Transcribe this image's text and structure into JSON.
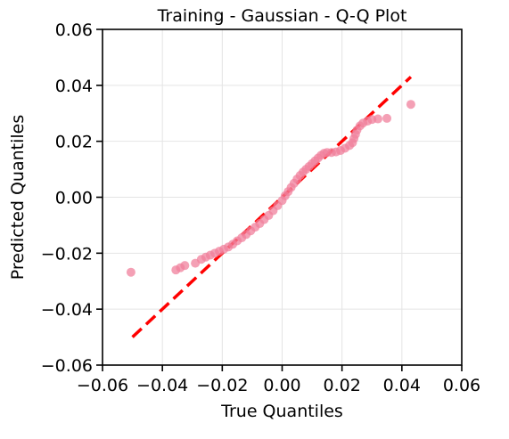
{
  "chart_data": {
    "type": "scatter",
    "title": "Training - Gaussian - Q-Q Plot",
    "xlabel": "True Quantiles",
    "ylabel": "Predicted Quantiles",
    "xlim": [
      -0.06,
      0.06
    ],
    "ylim": [
      -0.06,
      0.06
    ],
    "xticks": [
      -0.06,
      -0.04,
      -0.02,
      0.0,
      0.02,
      0.04,
      0.06
    ],
    "yticks": [
      -0.06,
      -0.04,
      -0.02,
      0.0,
      0.02,
      0.04,
      0.06
    ],
    "xtick_labels": [
      "−0.06",
      "−0.04",
      "−0.02",
      "0.00",
      "0.02",
      "0.04",
      "0.06"
    ],
    "ytick_labels": [
      "−0.06",
      "−0.04",
      "−0.02",
      "0.00",
      "0.02",
      "0.04",
      "0.06"
    ],
    "grid": true,
    "point_color": "#f0809c",
    "reference_line": {
      "color": "#ff0000",
      "style": "dashed",
      "x": [
        -0.05,
        0.043
      ],
      "y": [
        -0.05,
        0.043
      ]
    },
    "points": [
      [
        -0.0505,
        -0.0268
      ],
      [
        -0.0355,
        -0.026
      ],
      [
        -0.034,
        -0.0252
      ],
      [
        -0.0325,
        -0.0244
      ],
      [
        -0.029,
        -0.0236
      ],
      [
        -0.027,
        -0.0222
      ],
      [
        -0.0255,
        -0.0214
      ],
      [
        -0.024,
        -0.0207
      ],
      [
        -0.0225,
        -0.02
      ],
      [
        -0.021,
        -0.0193
      ],
      [
        -0.0195,
        -0.0186
      ],
      [
        -0.018,
        -0.0178
      ],
      [
        -0.0165,
        -0.0168
      ],
      [
        -0.015,
        -0.0156
      ],
      [
        -0.0135,
        -0.0145
      ],
      [
        -0.012,
        -0.0133
      ],
      [
        -0.0105,
        -0.012
      ],
      [
        -0.009,
        -0.0107
      ],
      [
        -0.0075,
        -0.0094
      ],
      [
        -0.006,
        -0.008
      ],
      [
        -0.0045,
        -0.0065
      ],
      [
        -0.003,
        -0.0048
      ],
      [
        -0.0015,
        -0.003
      ],
      [
        0.0,
        -0.0012
      ],
      [
        0.001,
        0.0005
      ],
      [
        0.002,
        0.002
      ],
      [
        0.003,
        0.0035
      ],
      [
        0.004,
        0.005
      ],
      [
        0.005,
        0.0065
      ],
      [
        0.006,
        0.0078
      ],
      [
        0.007,
        0.009
      ],
      [
        0.008,
        0.01
      ],
      [
        0.009,
        0.011
      ],
      [
        0.01,
        0.012
      ],
      [
        0.011,
        0.013
      ],
      [
        0.012,
        0.014
      ],
      [
        0.013,
        0.015
      ],
      [
        0.014,
        0.0157
      ],
      [
        0.015,
        0.016
      ],
      [
        0.0165,
        0.016
      ],
      [
        0.018,
        0.0162
      ],
      [
        0.0195,
        0.0167
      ],
      [
        0.021,
        0.0175
      ],
      [
        0.0225,
        0.0185
      ],
      [
        0.0235,
        0.0195
      ],
      [
        0.024,
        0.021
      ],
      [
        0.0245,
        0.0225
      ],
      [
        0.025,
        0.024
      ],
      [
        0.026,
        0.0255
      ],
      [
        0.027,
        0.0265
      ],
      [
        0.0285,
        0.0272
      ],
      [
        0.03,
        0.0278
      ],
      [
        0.032,
        0.028
      ],
      [
        0.035,
        0.0282
      ],
      [
        0.043,
        0.0332
      ]
    ]
  }
}
